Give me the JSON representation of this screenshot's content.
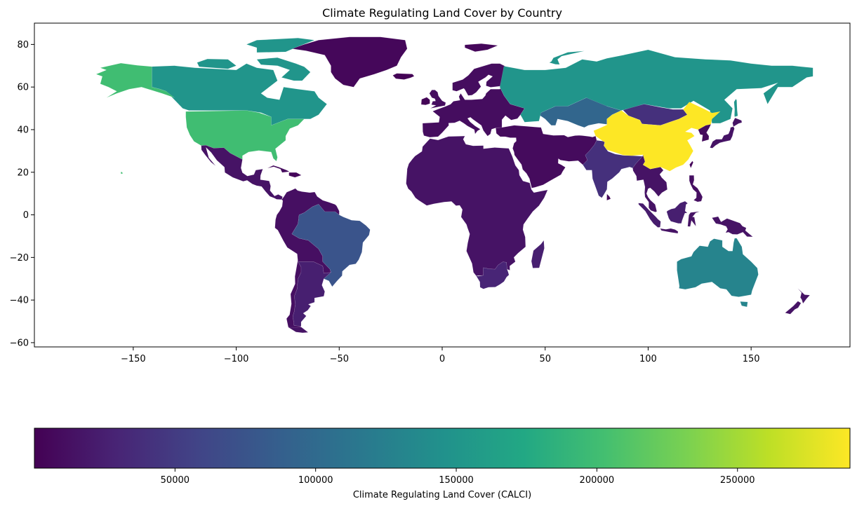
{
  "chart_data": {
    "type": "choropleth",
    "title": "Climate Regulating Land Cover by Country",
    "xlabel": "",
    "ylabel": "",
    "xlim": [
      -198,
      198
    ],
    "ylim": [
      -62,
      90
    ],
    "x_ticks": [
      -150,
      -100,
      -50,
      0,
      50,
      100,
      150
    ],
    "y_ticks": [
      -60,
      -40,
      -20,
      0,
      20,
      40,
      60,
      80
    ],
    "x_tick_labels": [
      "−150",
      "−100",
      "−50",
      "0",
      "50",
      "100",
      "150"
    ],
    "y_tick_labels": [
      "−60",
      "−40",
      "−20",
      "0",
      "20",
      "40",
      "60",
      "80"
    ],
    "colormap": "viridis",
    "colorbar": {
      "label": "Climate Regulating Land Cover (CALCI)",
      "range": [
        0,
        290000
      ],
      "ticks": [
        50000,
        100000,
        150000,
        200000,
        250000
      ],
      "tick_labels": [
        "50000",
        "100000",
        "150000",
        "200000",
        "250000"
      ],
      "placement": "bottom"
    },
    "regions": [
      {
        "name": "China",
        "value": 290000
      },
      {
        "name": "United States",
        "value": 200000
      },
      {
        "name": "Alaska",
        "value": 200000
      },
      {
        "name": "Canada",
        "value": 150000
      },
      {
        "name": "Russia",
        "value": 150000
      },
      {
        "name": "Australia",
        "value": 130000
      },
      {
        "name": "Kazakhstan",
        "value": 95000
      },
      {
        "name": "Brazil",
        "value": 75000
      },
      {
        "name": "Mongolia",
        "value": 40000
      },
      {
        "name": "India",
        "value": 40000
      },
      {
        "name": "Argentina",
        "value": 25000
      },
      {
        "name": "South Africa",
        "value": 30000
      },
      {
        "name": "Greenland",
        "value": 5000
      },
      {
        "name": "Africa",
        "value": 15000
      },
      {
        "name": "Europe",
        "value": 10000
      },
      {
        "name": "South America",
        "value": 12000
      },
      {
        "name": "Middle East",
        "value": 8000
      },
      {
        "name": "Southeast Asia",
        "value": 15000
      }
    ]
  }
}
